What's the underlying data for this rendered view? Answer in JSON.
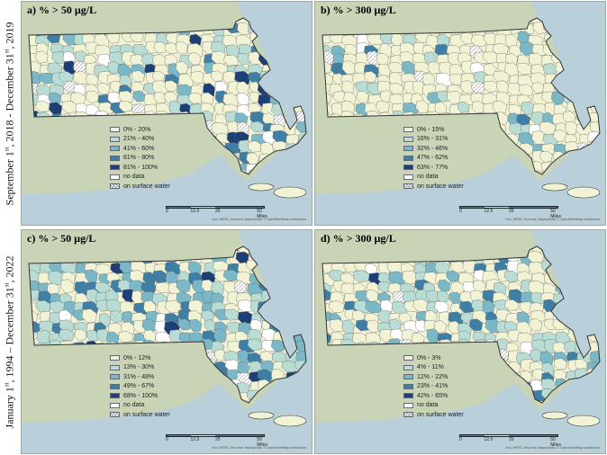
{
  "row_labels": [
    {
      "html": "September 1<sup>st</sup>, 2018 - December 31<sup>st</sup>, 2019"
    },
    {
      "html": "January 1<sup>st</sup>, 1994 – December 31<sup>st</sup>, 2022"
    }
  ],
  "row_label_text": [
    "September 1st, 2018 - December 31st, 2019",
    "January 1st, 1994 – December 31st, 2022"
  ],
  "panels": [
    {
      "title": "a) % > 50 µg/L",
      "legend": [
        {
          "label": "0% - 20%",
          "color": "#f2f3d5"
        },
        {
          "label": "21% - 40%",
          "color": "#b9ddd4"
        },
        {
          "label": "41% - 60%",
          "color": "#7ab8c8"
        },
        {
          "label": "61% - 80%",
          "color": "#3f7fa6"
        },
        {
          "label": "81% - 100%",
          "color": "#1d3f77"
        },
        {
          "label": "no data",
          "color": "#ffffff"
        },
        {
          "label": "on surface water",
          "color": "hatch"
        }
      ],
      "fill_weights": [
        0.55,
        0.2,
        0.12,
        0.08,
        0.05
      ]
    },
    {
      "title": "b) % > 300 µg/L",
      "legend": [
        {
          "label": "0% - 15%",
          "color": "#f2f3d5"
        },
        {
          "label": "16% - 31%",
          "color": "#b9ddd4"
        },
        {
          "label": "32% - 46%",
          "color": "#7ab8c8"
        },
        {
          "label": "47% - 62%",
          "color": "#3f7fa6"
        },
        {
          "label": "63% - 77%",
          "color": "#1d3f77"
        },
        {
          "label": "no data",
          "color": "#ffffff"
        },
        {
          "label": "on surface water",
          "color": "hatch"
        }
      ],
      "fill_weights": [
        0.78,
        0.1,
        0.06,
        0.04,
        0.02
      ]
    },
    {
      "title": "c) % > 50 µg/L",
      "legend": [
        {
          "label": "0% - 12%",
          "color": "#f2f3d5"
        },
        {
          "label": "13% - 30%",
          "color": "#b9ddd4"
        },
        {
          "label": "31% - 48%",
          "color": "#7ab8c8"
        },
        {
          "label": "49% - 67%",
          "color": "#3f7fa6"
        },
        {
          "label": "68% - 100%",
          "color": "#1d3f77"
        },
        {
          "label": "no data",
          "color": "#ffffff"
        },
        {
          "label": "on surface water",
          "color": "hatch"
        }
      ],
      "fill_weights": [
        0.3,
        0.3,
        0.22,
        0.12,
        0.06
      ]
    },
    {
      "title": "d) % > 300 µg/L",
      "legend": [
        {
          "label": "0% - 3%",
          "color": "#f2f3d5"
        },
        {
          "label": "4% - 11%",
          "color": "#b9ddd4"
        },
        {
          "label": "12% - 22%",
          "color": "#7ab8c8"
        },
        {
          "label": "23% - 41%",
          "color": "#3f7fa6"
        },
        {
          "label": "42% - 65%",
          "color": "#1d3f77"
        },
        {
          "label": "no data",
          "color": "#ffffff"
        },
        {
          "label": "on surface water",
          "color": "hatch"
        }
      ],
      "fill_weights": [
        0.5,
        0.28,
        0.13,
        0.06,
        0.03
      ]
    }
  ],
  "scale_bar": {
    "ticks": [
      "0",
      "12.5",
      "25",
      "50 Miles"
    ]
  },
  "map_credit": "Esri, HERE, DeLorme, MapmyIndia, © OpenStreetMap contributors",
  "colors": {
    "water": "#b9cfd9",
    "land": "#c9d3b5",
    "state_border": "#333333",
    "town_border": "#6b6b6b"
  }
}
